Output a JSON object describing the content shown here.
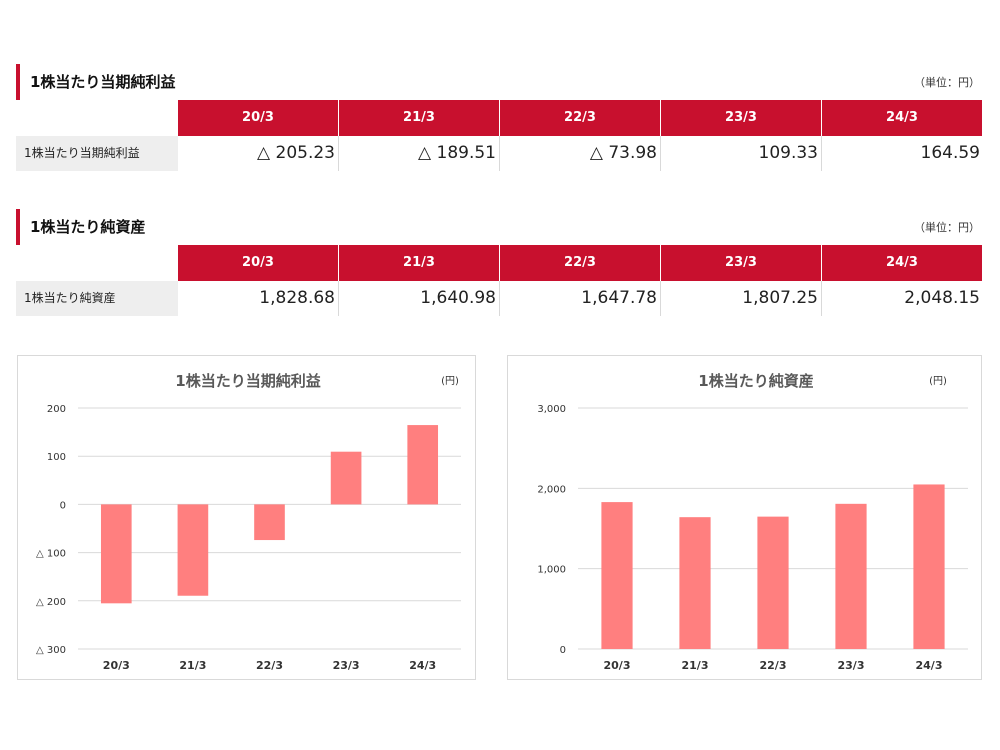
{
  "tables": [
    {
      "title": "1株当たり当期純利益",
      "unit": "（単位：円）",
      "headers": [
        "20/3",
        "21/3",
        "22/3",
        "23/3",
        "24/3"
      ],
      "row_label": "1株当たり当期純利益",
      "values": [
        "△ 205.23",
        "△ 189.51",
        "△ 73.98",
        "109.33",
        "164.59"
      ]
    },
    {
      "title": "1株当たり純資産",
      "unit": "（単位：円）",
      "headers": [
        "20/3",
        "21/3",
        "22/3",
        "23/3",
        "24/3"
      ],
      "row_label": "1株当たり純資産",
      "values": [
        "1,828.68",
        "1,640.98",
        "1,647.78",
        "1,807.25",
        "2,048.15"
      ]
    }
  ],
  "chart_data": [
    {
      "type": "bar",
      "title": "1株当たり当期純利益",
      "unit": "(円)",
      "categories": [
        "20/3",
        "21/3",
        "22/3",
        "23/3",
        "24/3"
      ],
      "values": [
        -205.23,
        -189.51,
        -73.98,
        109.33,
        164.59
      ],
      "ylim": [
        -300,
        200
      ],
      "yticks": [
        200,
        100,
        0,
        -100,
        -200,
        -300
      ],
      "ytick_labels": [
        "200",
        "100",
        "0",
        "△ 100",
        "△ 200",
        "△ 300"
      ],
      "grid": true,
      "color": "#ff7f7f"
    },
    {
      "type": "bar",
      "title": "1株当たり純資産",
      "unit": "(円)",
      "categories": [
        "20/3",
        "21/3",
        "22/3",
        "23/3",
        "24/3"
      ],
      "values": [
        1828.68,
        1640.98,
        1647.78,
        1807.25,
        2048.15
      ],
      "ylim": [
        0,
        3000
      ],
      "yticks": [
        3000,
        2000,
        1000,
        0
      ],
      "ytick_labels": [
        "3,000",
        "2,000",
        "1,000",
        "0"
      ],
      "grid": true,
      "color": "#ff7f7f"
    }
  ],
  "colors": {
    "accent": "#c8102e",
    "bar": "#ff7f7f",
    "grid": "#d9d9d9"
  }
}
